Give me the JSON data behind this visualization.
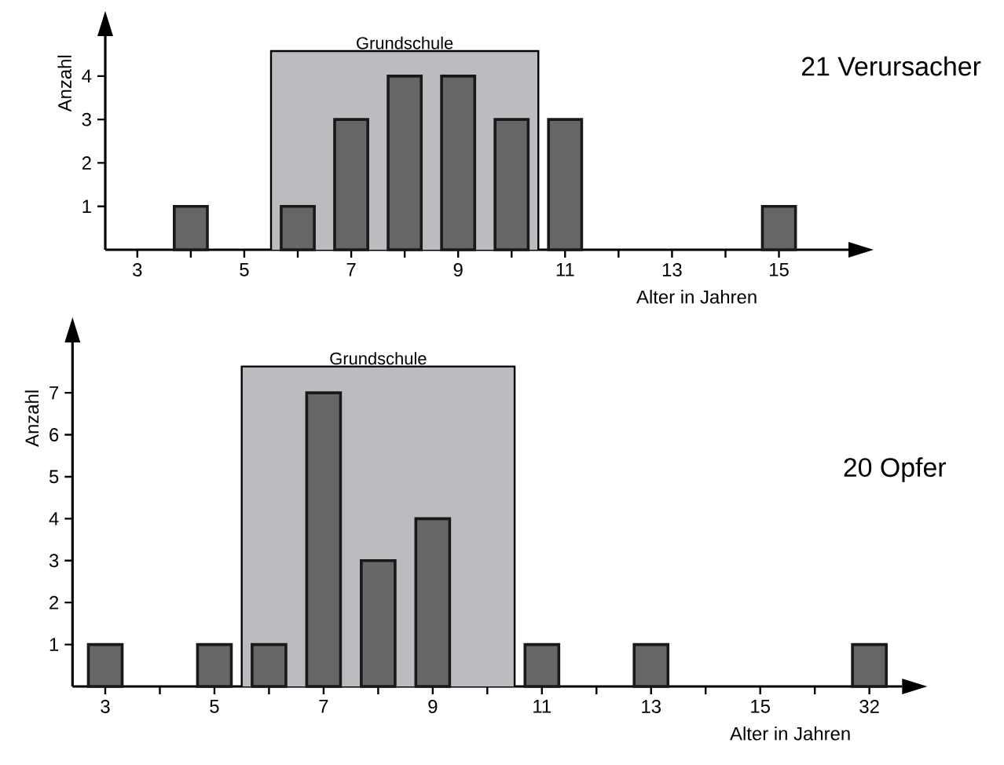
{
  "chart_data": [
    {
      "type": "bar",
      "title": "21 Verursacher",
      "xlabel": "Alter in Jahren",
      "ylabel": "Anzahl",
      "x": [
        4,
        6,
        7,
        8,
        9,
        10,
        11,
        15
      ],
      "values": [
        1,
        1,
        3,
        4,
        4,
        3,
        3,
        1
      ],
      "color": "#666666",
      "xlim": [
        2.4,
        16.3
      ],
      "xticks": [
        3,
        {
          "value": 4,
          "label": null
        },
        5,
        {
          "value": 6,
          "label": null
        },
        7,
        {
          "value": 8,
          "label": null
        },
        9,
        {
          "value": 10,
          "label": null
        },
        11,
        {
          "value": 12,
          "label": null
        },
        13,
        {
          "value": 14,
          "label": null
        },
        15
      ],
      "ylim": [
        0,
        4.92
      ],
      "yticks": [
        1,
        2,
        3,
        4
      ],
      "bands": [
        {
          "axis": "x",
          "from": 5.5,
          "to": 10.5,
          "label": "Grundschule",
          "color": "#bbbcc0"
        }
      ]
    },
    {
      "type": "bar",
      "title": "20 Opfer",
      "xlabel": "Alter in Jahren",
      "ylabel": "Anzahl",
      "categories": [
        "3",
        null,
        "5",
        null,
        "7",
        null,
        "9",
        null,
        "11",
        null,
        "13",
        null,
        "15",
        null,
        "32"
      ],
      "values": [
        1,
        null,
        1,
        1,
        7,
        3,
        4,
        null,
        1,
        null,
        1,
        null,
        null,
        null,
        1
      ],
      "color": "#666666",
      "ylim": [
        0,
        8.2
      ],
      "yticks": [
        1,
        2,
        3,
        4,
        5,
        6,
        7
      ],
      "bands": [
        {
          "axis": "x",
          "from": "5",
          "to": "11",
          "label": "Grundschule",
          "color": "#bbbcc0"
        }
      ]
    }
  ]
}
